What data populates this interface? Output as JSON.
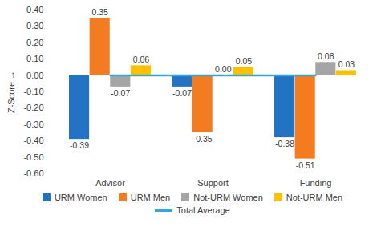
{
  "chart_data": {
    "type": "bar",
    "y_label": "Z-Score",
    "categories": [
      "Advisor",
      "Support",
      "Funding"
    ],
    "series": [
      {
        "name": "URM Women",
        "type": "bar",
        "color": "#2273c3",
        "values": [
          -0.39,
          -0.07,
          -0.38
        ],
        "value_labels": [
          "-0.39",
          "-0.07",
          "-0.38"
        ]
      },
      {
        "name": "URM Men",
        "type": "bar",
        "color": "#f47c20",
        "values": [
          0.35,
          -0.35,
          -0.51
        ],
        "value_labels": [
          "0.35",
          "-0.35",
          "-0.51"
        ]
      },
      {
        "name": "Not-URM Women",
        "type": "bar",
        "color": "#a5a5a5",
        "values": [
          -0.07,
          0,
          0.08
        ],
        "value_labels": [
          "-0.07",
          "0.00",
          "0.08"
        ]
      },
      {
        "name": "Not-URM Men",
        "type": "bar",
        "color": "#ffc000",
        "values": [
          0.06,
          0.05,
          0.03
        ],
        "value_labels": [
          "0.06",
          "0.05",
          "0.03"
        ]
      },
      {
        "name": "Total Average",
        "type": "line",
        "color": "#33a6dc",
        "values": [
          0,
          0,
          0
        ]
      }
    ],
    "ylim": [
      -0.6,
      0.4
    ],
    "yticks": [
      {
        "value": -0.6,
        "label": "-0.60"
      },
      {
        "value": -0.5,
        "label": "-0.50"
      },
      {
        "value": -0.4,
        "label": "-0.40"
      },
      {
        "value": -0.3,
        "label": "-0.30"
      },
      {
        "value": -0.2,
        "label": "-0.20"
      },
      {
        "value": -0.1,
        "label": "-0.10"
      },
      {
        "value": 0,
        "label": "0.00"
      },
      {
        "value": 0.1,
        "label": "0.10"
      },
      {
        "value": 0.2,
        "label": "0.20"
      },
      {
        "value": 0.3,
        "label": "0.30"
      },
      {
        "value": 0.4,
        "label": "0.40"
      }
    ],
    "grid": false,
    "data_labels": true,
    "legend": "bottom"
  }
}
